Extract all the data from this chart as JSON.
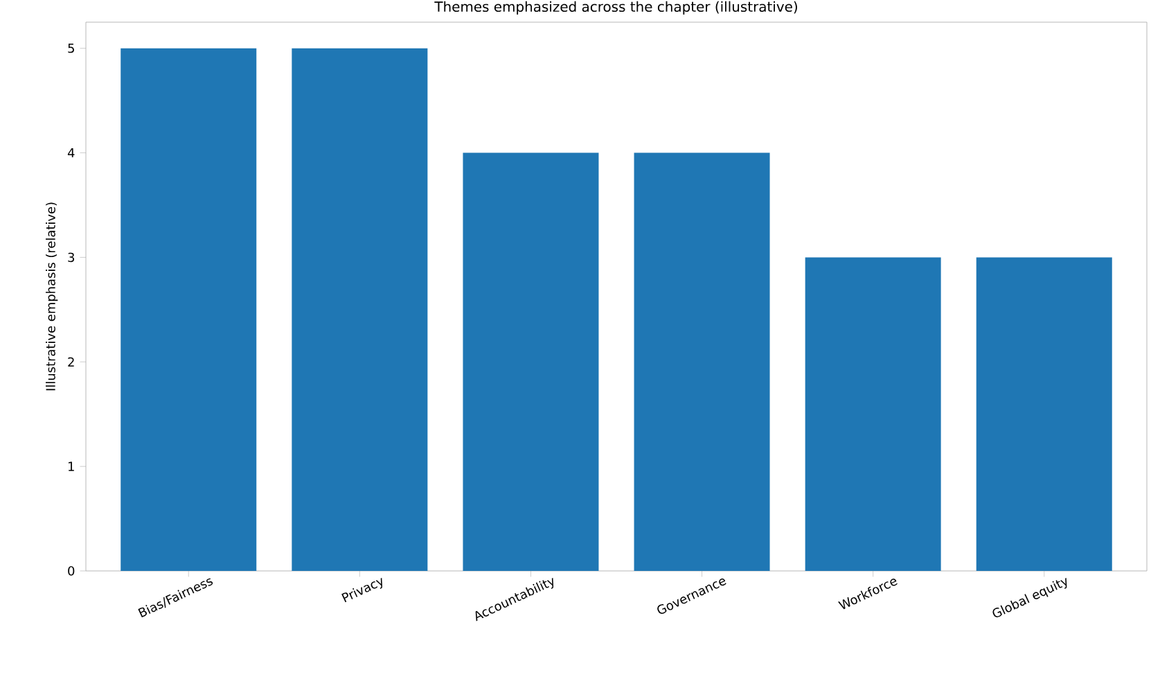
{
  "chart_data": {
    "type": "bar",
    "title": "Themes emphasized across the chapter (illustrative)",
    "ylabel": "Illustrative emphasis (relative)",
    "categories": [
      "Bias/Fairness",
      "Privacy",
      "Accountability",
      "Governance",
      "Workforce",
      "Global equity"
    ],
    "values": [
      5,
      5,
      4,
      4,
      3,
      3
    ],
    "color": "#1f77b4",
    "ylim": [
      0,
      5.25
    ],
    "yticks": [
      0,
      1,
      2,
      3,
      4,
      5
    ],
    "grid": false
  }
}
